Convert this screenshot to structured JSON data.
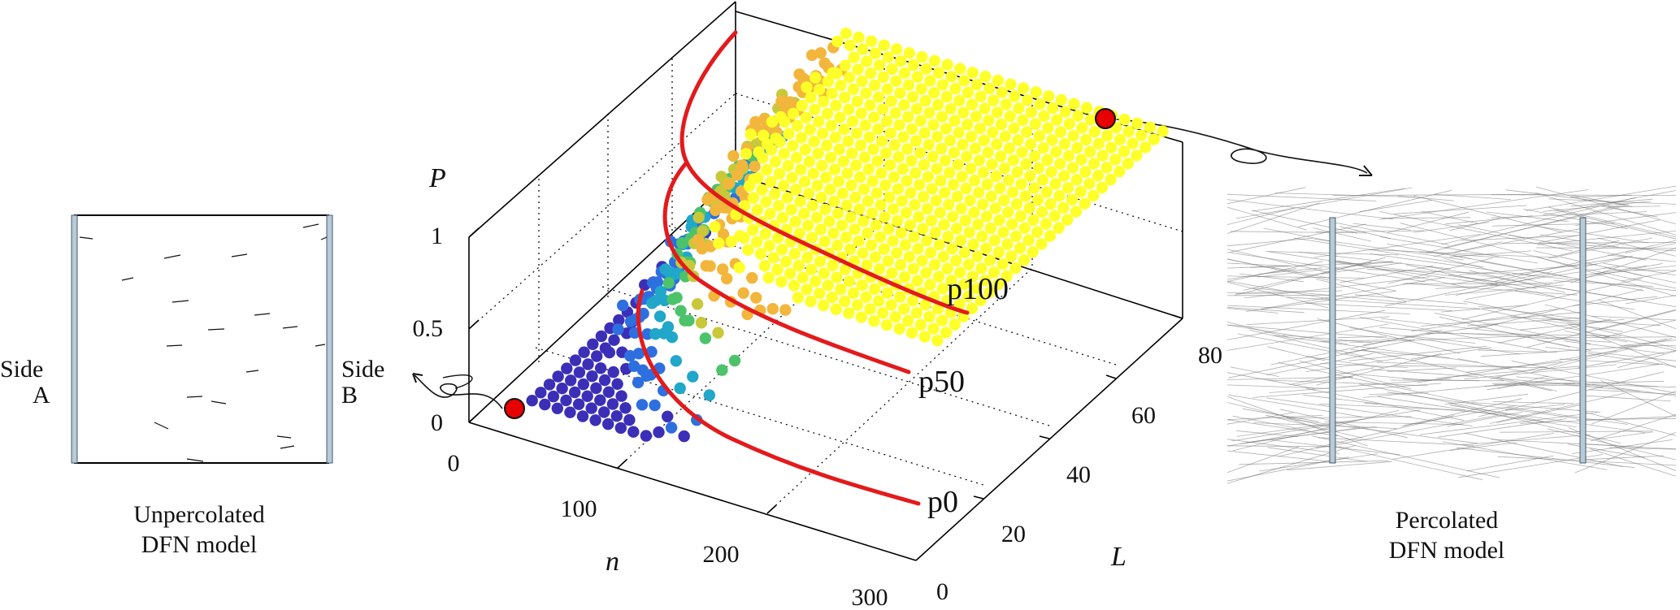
{
  "left_panel": {
    "side_a": [
      "Side",
      "A"
    ],
    "side_b": [
      "Side",
      "B"
    ],
    "caption": [
      "Unpercolated",
      "DFN model"
    ]
  },
  "right_panel": {
    "caption": [
      "Percolated",
      "DFN model"
    ]
  },
  "chart_data": {
    "type": "scatter",
    "projection": "3d",
    "axis_labels": {
      "x": "n",
      "y": "L",
      "z": "P"
    },
    "x_ticks": [
      "0",
      "100",
      "200",
      "300"
    ],
    "y_ticks": [
      "0",
      "20",
      "40",
      "60",
      "80"
    ],
    "z_ticks": [
      "0",
      "0.5",
      "1"
    ],
    "xlim": [
      0,
      300
    ],
    "ylim": [
      0,
      80
    ],
    "zlim": [
      0,
      1
    ],
    "grid": "dotted",
    "colormap": [
      "#3b2fb8",
      "#2e6fe0",
      "#20a7c9",
      "#4cc36a",
      "#c8c83a",
      "#f3b63c",
      "#ffff2a"
    ],
    "curve_labels": [
      "p100",
      "p50",
      "p0"
    ],
    "curve_color": "#e31a1c",
    "highlighted_points": [
      {
        "n": 20,
        "L": 80,
        "P": 0
      },
      {
        "n": 300,
        "L": 80,
        "P": 1
      }
    ]
  }
}
